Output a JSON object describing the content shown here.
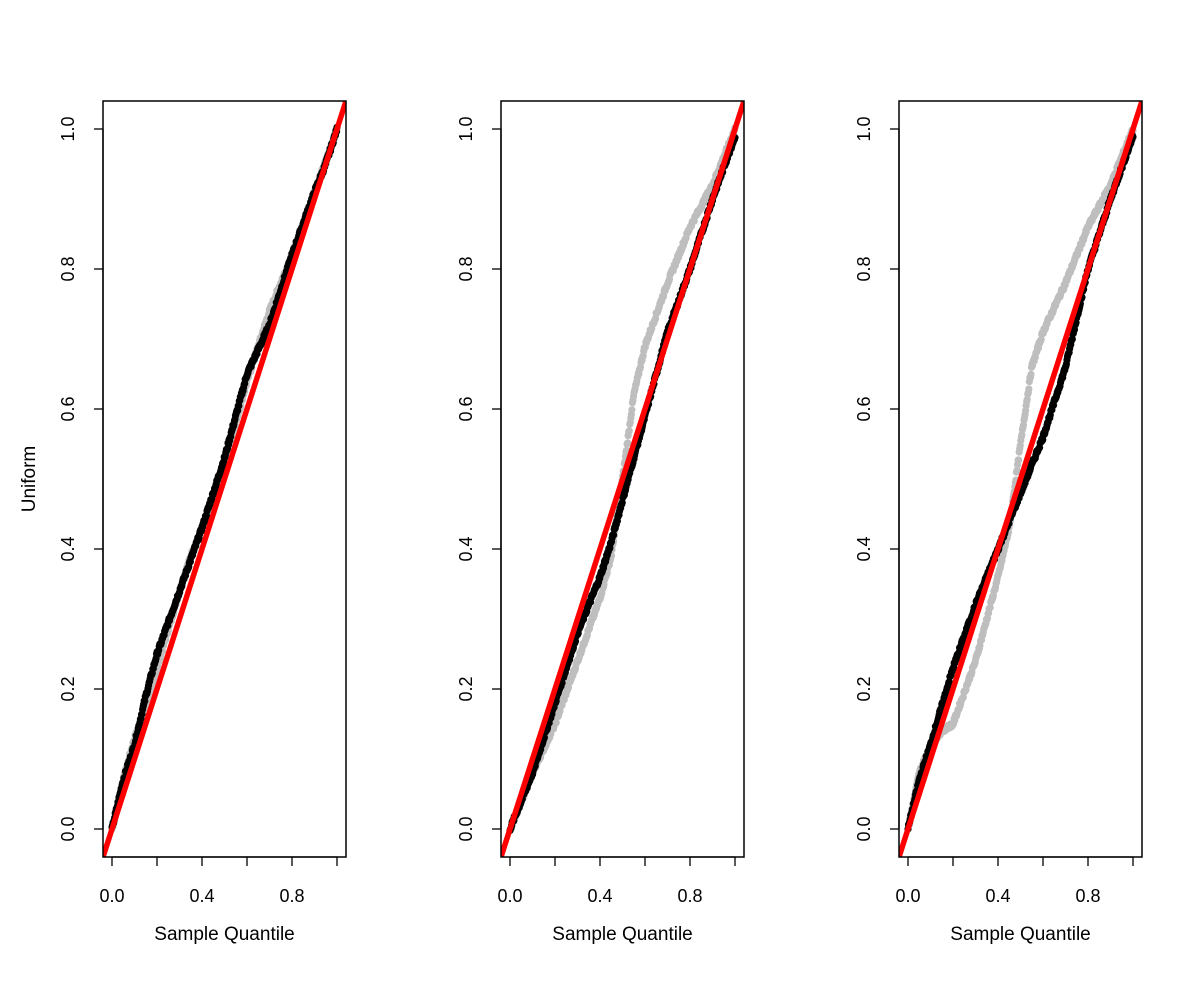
{
  "chart_data": [
    {
      "type": "scatter",
      "title": "",
      "xlabel": "Sample Quantile",
      "ylabel": "Uniform",
      "xlim": [
        -0.04,
        1.04
      ],
      "ylim": [
        -0.04,
        1.04
      ],
      "xticks": [
        "0.0",
        "0.4",
        "0.8"
      ],
      "yticks": [
        "0.0",
        "0.2",
        "0.4",
        "0.6",
        "0.8",
        "1.0"
      ],
      "grid": false,
      "reference_line": {
        "slope": 1,
        "intercept": 0,
        "color": "#ff0000"
      },
      "series": [
        {
          "color": "#bebebe",
          "points": [
            [
              0,
              0
            ],
            [
              0.05,
              0.07
            ],
            [
              0.1,
              0.13
            ],
            [
              0.15,
              0.17
            ],
            [
              0.2,
              0.23
            ],
            [
              0.3,
              0.34
            ],
            [
              0.35,
              0.39
            ],
            [
              0.4,
              0.43
            ],
            [
              0.5,
              0.52
            ],
            [
              0.6,
              0.64
            ],
            [
              0.7,
              0.74
            ],
            [
              0.75,
              0.78
            ],
            [
              0.8,
              0.82
            ],
            [
              0.9,
              0.91
            ],
            [
              1.0,
              1.0
            ]
          ]
        },
        {
          "color": "#000000",
          "points": [
            [
              0,
              0
            ],
            [
              0.05,
              0.07
            ],
            [
              0.1,
              0.12
            ],
            [
              0.15,
              0.19
            ],
            [
              0.2,
              0.25
            ],
            [
              0.3,
              0.34
            ],
            [
              0.4,
              0.43
            ],
            [
              0.5,
              0.53
            ],
            [
              0.6,
              0.65
            ],
            [
              0.7,
              0.72
            ],
            [
              0.8,
              0.82
            ],
            [
              0.9,
              0.91
            ],
            [
              0.95,
              0.95
            ],
            [
              1.0,
              1.0
            ]
          ]
        }
      ]
    },
    {
      "type": "scatter",
      "title": "",
      "xlabel": "Sample Quantile",
      "ylabel": "",
      "xlim": [
        -0.04,
        1.04
      ],
      "ylim": [
        -0.04,
        1.04
      ],
      "xticks": [
        "0.0",
        "0.4",
        "0.8"
      ],
      "yticks": [
        "0.0",
        "0.2",
        "0.4",
        "0.6",
        "0.8",
        "1.0"
      ],
      "grid": false,
      "reference_line": {
        "slope": 1,
        "intercept": 0,
        "color": "#ff0000"
      },
      "series": [
        {
          "color": "#bebebe",
          "points": [
            [
              0,
              0
            ],
            [
              0.1,
              0.08
            ],
            [
              0.2,
              0.15
            ],
            [
              0.3,
              0.24
            ],
            [
              0.4,
              0.33
            ],
            [
              0.45,
              0.39
            ],
            [
              0.5,
              0.5
            ],
            [
              0.55,
              0.62
            ],
            [
              0.6,
              0.69
            ],
            [
              0.7,
              0.78
            ],
            [
              0.75,
              0.82
            ],
            [
              0.8,
              0.86
            ],
            [
              0.9,
              0.92
            ],
            [
              1.0,
              1.0
            ]
          ]
        },
        {
          "color": "#000000",
          "points": [
            [
              0,
              0
            ],
            [
              0.1,
              0.08
            ],
            [
              0.2,
              0.18
            ],
            [
              0.3,
              0.28
            ],
            [
              0.4,
              0.36
            ],
            [
              0.45,
              0.41
            ],
            [
              0.5,
              0.47
            ],
            [
              0.6,
              0.59
            ],
            [
              0.7,
              0.71
            ],
            [
              0.8,
              0.8
            ],
            [
              0.9,
              0.9
            ],
            [
              1.0,
              0.99
            ]
          ]
        }
      ]
    },
    {
      "type": "scatter",
      "title": "",
      "xlabel": "Sample Quantile",
      "ylabel": "",
      "xlim": [
        -0.04,
        1.04
      ],
      "ylim": [
        -0.04,
        1.04
      ],
      "xticks": [
        "0.0",
        "0.4",
        "0.8"
      ],
      "yticks": [
        "0.0",
        "0.2",
        "0.4",
        "0.6",
        "0.8",
        "1.0"
      ],
      "grid": false,
      "reference_line": {
        "slope": 1,
        "intercept": 0,
        "color": "#ff0000"
      },
      "series": [
        {
          "color": "#bebebe",
          "points": [
            [
              0,
              0
            ],
            [
              0.05,
              0.08
            ],
            [
              0.1,
              0.12
            ],
            [
              0.15,
              0.14
            ],
            [
              0.2,
              0.15
            ],
            [
              0.3,
              0.24
            ],
            [
              0.35,
              0.3
            ],
            [
              0.4,
              0.36
            ],
            [
              0.45,
              0.43
            ],
            [
              0.5,
              0.55
            ],
            [
              0.55,
              0.66
            ],
            [
              0.6,
              0.71
            ],
            [
              0.7,
              0.78
            ],
            [
              0.8,
              0.86
            ],
            [
              0.9,
              0.92
            ],
            [
              1.0,
              1.0
            ]
          ]
        },
        {
          "color": "#000000",
          "points": [
            [
              0,
              0
            ],
            [
              0.05,
              0.07
            ],
            [
              0.1,
              0.12
            ],
            [
              0.2,
              0.23
            ],
            [
              0.3,
              0.32
            ],
            [
              0.4,
              0.4
            ],
            [
              0.5,
              0.48
            ],
            [
              0.6,
              0.56
            ],
            [
              0.7,
              0.66
            ],
            [
              0.8,
              0.8
            ],
            [
              0.9,
              0.9
            ],
            [
              1.0,
              0.99
            ]
          ]
        }
      ]
    }
  ]
}
